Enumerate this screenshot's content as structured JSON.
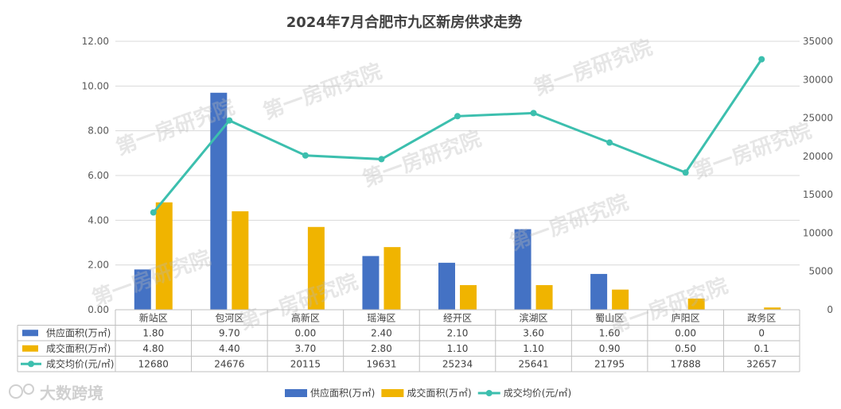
{
  "chart_data": {
    "type": "bar",
    "title": "2024年7月合肥市九区新房供求走势",
    "categories": [
      "新站区",
      "包河区",
      "高新区",
      "瑶海区",
      "经开区",
      "滨湖区",
      "蜀山区",
      "庐阳区",
      "政务区"
    ],
    "series": [
      {
        "name": "供应面积(万㎡)",
        "type": "bar",
        "axis": "left",
        "color": "#4472c4",
        "values": [
          1.8,
          9.7,
          0.0,
          2.4,
          2.1,
          3.6,
          1.6,
          0.0,
          0
        ],
        "labels": [
          "1.80",
          "9.70",
          "0.00",
          "2.40",
          "2.10",
          "3.60",
          "1.60",
          "0.00",
          "0"
        ]
      },
      {
        "name": "成交面积(万㎡)",
        "type": "bar",
        "axis": "right-none",
        "color": "#f0b400",
        "values": [
          4.8,
          4.4,
          3.7,
          2.8,
          1.1,
          1.1,
          0.9,
          0.5,
          0.1
        ],
        "labels": [
          "4.80",
          "4.40",
          "3.70",
          "2.80",
          "1.10",
          "1.10",
          "0.90",
          "0.50",
          "0.1"
        ]
      },
      {
        "name": "成交均价(元/㎡)",
        "type": "line",
        "axis": "right",
        "color": "#3cbfae",
        "values": [
          12680,
          24676,
          20115,
          19631,
          25234,
          25641,
          21795,
          17888,
          32657
        ],
        "labels": [
          "12680",
          "24676",
          "20115",
          "19631",
          "25234",
          "25641",
          "21795",
          "17888",
          "32657"
        ]
      }
    ],
    "left_axis": {
      "ylim": [
        0,
        12
      ],
      "ticks": [
        "0.00",
        "2.00",
        "4.00",
        "6.00",
        "8.00",
        "10.00",
        "12.00"
      ]
    },
    "right_axis": {
      "ylim": [
        0,
        35000
      ],
      "ticks": [
        "0",
        "5000",
        "10000",
        "15000",
        "20000",
        "25000",
        "30000",
        "35000"
      ]
    },
    "grid": true,
    "legend_position": "bottom",
    "data_table": true
  },
  "watermark": {
    "text": "第一房研究院"
  },
  "brand": {
    "text": "大数跨境"
  }
}
